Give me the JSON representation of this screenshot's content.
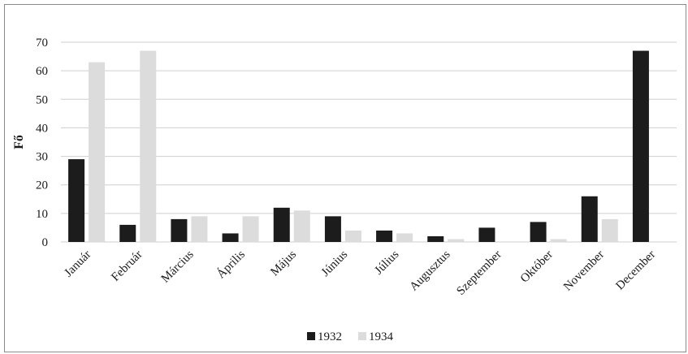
{
  "chart_data": {
    "type": "bar",
    "title": "",
    "xlabel": "",
    "ylabel": "Fő",
    "ylim": [
      0,
      70
    ],
    "yticks": [
      0,
      10,
      20,
      30,
      40,
      50,
      60,
      70
    ],
    "grid": true,
    "legend_position": "bottom",
    "categories": [
      "Január",
      "Február",
      "Március",
      "Április",
      "Május",
      "Június",
      "Július",
      "Augusztus",
      "Szeptember",
      "Október",
      "November",
      "December"
    ],
    "series": [
      {
        "name": "1932",
        "color": "#1c1c1c",
        "values": [
          29,
          6,
          8,
          3,
          12,
          9,
          4,
          2,
          5,
          7,
          16,
          67
        ]
      },
      {
        "name": "1934",
        "color": "#dcdcdc",
        "values": [
          63,
          67,
          9,
          9,
          11,
          4,
          3,
          1,
          0,
          1,
          8,
          0
        ]
      }
    ]
  }
}
